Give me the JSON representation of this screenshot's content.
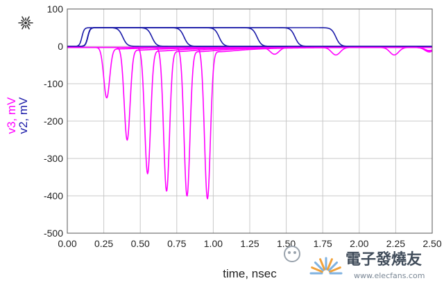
{
  "chart_data": {
    "type": "line",
    "title": "",
    "xlabel": "time, nsec",
    "ylabel_series": [
      {
        "text": "v3, mV",
        "color": "#ff00ff"
      },
      {
        "text": "v2, mV",
        "color": "#1a1aa8"
      }
    ],
    "xlim": [
      0,
      2.5
    ],
    "ylim": [
      -500,
      100
    ],
    "x_ticks": [
      {
        "value": 0.0,
        "label": "0.00"
      },
      {
        "value": 0.25,
        "label": "0.25"
      },
      {
        "value": 0.5,
        "label": "0.50"
      },
      {
        "value": 0.75,
        "label": "0.75"
      },
      {
        "value": 1.0,
        "label": "1.00"
      },
      {
        "value": 1.25,
        "label": "1.25"
      },
      {
        "value": 1.5,
        "label": "1.50"
      },
      {
        "value": 1.75,
        "label": "1.75"
      },
      {
        "value": 2.0,
        "label": "2.00"
      },
      {
        "value": 2.25,
        "label": "2.25"
      },
      {
        "value": 2.5,
        "label": "2.50"
      }
    ],
    "y_ticks": [
      {
        "value": 100,
        "label": "100"
      },
      {
        "value": 0,
        "label": "0"
      },
      {
        "value": -100,
        "label": "-100"
      },
      {
        "value": -200,
        "label": "-200"
      },
      {
        "value": -300,
        "label": "-300"
      },
      {
        "value": -400,
        "label": "-400"
      },
      {
        "value": -500,
        "label": "-500"
      }
    ],
    "grid": true,
    "series": [
      {
        "name": "v2",
        "color": "#1a1aa8",
        "pulses": [
          {
            "rise": 0.1,
            "fall": 0.38,
            "amplitude": 50
          },
          {
            "rise": 0.14,
            "fall": 0.58,
            "amplitude": 50
          },
          {
            "rise": 0.14,
            "fall": 0.8,
            "amplitude": 50
          },
          {
            "rise": 0.14,
            "fall": 1.04,
            "amplitude": 50
          },
          {
            "rise": 0.14,
            "fall": 1.3,
            "amplitude": 50
          },
          {
            "rise": 0.14,
            "fall": 1.56,
            "amplitude": 50
          },
          {
            "rise": 0.14,
            "fall": 1.84,
            "amplitude": 50
          }
        ]
      },
      {
        "name": "v3",
        "color": "#ff00ff",
        "pulses": [
          {
            "center": 0.27,
            "peak": -135,
            "ripple_x": 1.42,
            "ripple_y": -18
          },
          {
            "center": 0.41,
            "peak": -248,
            "ripple_x": 1.84,
            "ripple_y": -20
          },
          {
            "center": 0.55,
            "peak": -338,
            "ripple_x": 2.24,
            "ripple_y": -20
          },
          {
            "center": 0.68,
            "peak": -385,
            "ripple_x": 2.48,
            "ripple_y": -12
          },
          {
            "center": 0.82,
            "peak": -398,
            "ripple_x": 2.48,
            "ripple_y": -10
          },
          {
            "center": 0.96,
            "peak": -405,
            "ripple_x": 2.48,
            "ripple_y": -8
          }
        ]
      }
    ]
  },
  "watermark": {
    "text_main": "電子發燒友",
    "text_sub": "www.elecfans.com"
  }
}
